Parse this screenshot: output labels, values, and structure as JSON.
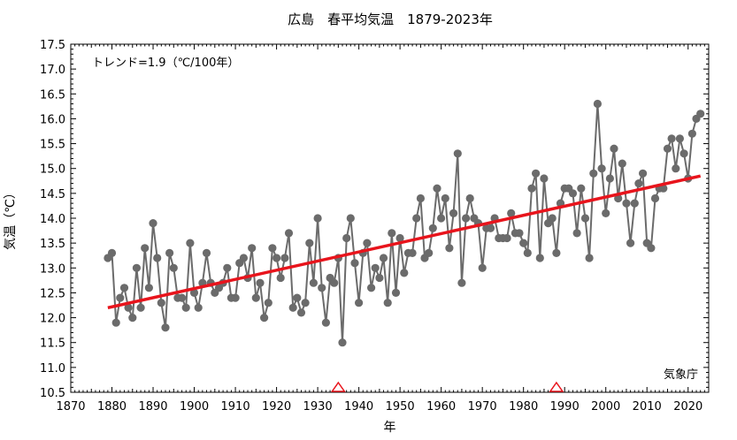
{
  "chart_data": {
    "type": "line",
    "title": "広島　春平均気温　1879-2023年",
    "xlabel": "年",
    "ylabel": "気温（℃）",
    "xlim": [
      1870,
      2025
    ],
    "ylim": [
      10.5,
      17.5
    ],
    "xticks": [
      "1870",
      "1880",
      "1890",
      "1900",
      "1910",
      "1920",
      "1930",
      "1940",
      "1950",
      "1960",
      "1970",
      "1980",
      "1990",
      "2000",
      "2010",
      "2020"
    ],
    "yticks": [
      "10.5",
      "11.0",
      "11.5",
      "12.0",
      "12.5",
      "13.0",
      "13.5",
      "14.0",
      "14.5",
      "15.0",
      "15.5",
      "16.0",
      "16.5",
      "17.0",
      "17.5"
    ],
    "trend_label": "トレンド=1.9（℃/100年）",
    "source": "気象庁",
    "grid": false,
    "colors": {
      "series": "#6b6b6b",
      "trend": "#e8141c",
      "marker": "#e8141c"
    },
    "series": [
      {
        "x_start": 1879,
        "values": [
          13.2,
          13.3,
          11.9,
          12.4,
          12.6,
          12.2,
          12.0,
          13.0,
          12.2,
          13.4,
          12.6,
          13.9,
          13.2,
          12.3,
          11.8,
          13.3,
          13.0,
          12.4,
          12.4,
          12.2,
          13.5,
          12.5,
          12.2,
          12.7,
          13.3,
          12.7,
          12.5,
          12.6,
          12.7,
          13.0,
          12.4,
          12.4,
          13.1,
          13.2,
          12.8,
          13.4,
          12.4,
          12.7,
          12.0,
          12.3,
          13.4,
          13.2,
          12.8,
          13.2,
          13.7,
          12.2,
          12.4,
          12.1,
          12.3,
          13.5,
          12.7,
          14.0,
          12.6,
          11.9,
          12.8,
          12.7,
          13.2,
          11.5,
          13.6,
          14.0,
          13.1,
          12.3,
          13.3,
          13.5,
          12.6,
          13.0,
          12.8,
          13.2,
          12.3,
          13.7,
          12.5,
          13.6,
          12.9,
          13.3,
          13.3,
          14.0,
          14.4,
          13.2,
          13.3,
          13.8,
          14.6,
          14.0,
          14.4,
          13.4,
          14.1,
          15.3,
          12.7,
          14.0,
          14.4,
          14.0,
          13.9,
          13.0,
          13.8,
          13.8,
          14.0,
          13.6,
          13.6,
          13.6,
          14.1,
          13.7,
          13.7,
          13.5,
          13.3,
          14.6,
          14.9,
          13.2,
          14.8,
          13.9,
          14.0,
          13.3,
          14.3,
          14.6,
          14.6,
          14.5,
          13.7,
          14.6,
          14.0,
          13.2,
          14.9,
          16.3,
          15.0,
          14.1,
          14.8,
          15.4,
          14.4,
          15.1,
          14.3,
          13.5,
          14.3,
          14.7,
          14.9,
          13.5,
          13.4,
          14.4,
          14.6,
          14.6,
          15.4,
          15.6,
          15.0,
          15.6,
          15.3,
          14.8,
          15.7,
          16.0,
          16.1
        ]
      }
    ],
    "trend_line": {
      "x": [
        1879,
        2023
      ],
      "y": [
        12.2,
        14.85
      ]
    },
    "station_change_markers": [
      1935,
      1988
    ]
  }
}
